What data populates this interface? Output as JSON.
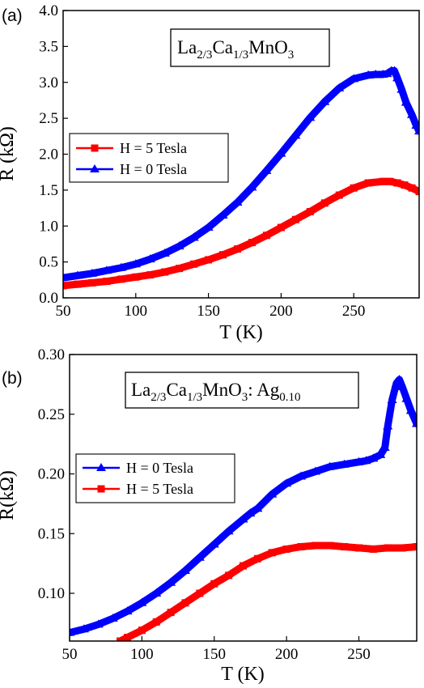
{
  "figure": {
    "panels": [
      "a",
      "b"
    ]
  },
  "chart_data": [
    {
      "id": "a",
      "type": "line",
      "panel_label": "(a)",
      "compound": {
        "main1": "La",
        "sub1": "2/3",
        "main2": "Ca",
        "sub2": "1/3",
        "main3": "MnO",
        "sub3": "3",
        "suffix": "",
        "suffix_sub": ""
      },
      "xlabel": "T (K)",
      "ylabel": "R (kΩ)",
      "xlim": [
        50,
        295
      ],
      "ylim": [
        0,
        4.0
      ],
      "xticks": [
        50,
        100,
        150,
        200,
        250
      ],
      "yticks": [
        0.0,
        0.5,
        1.0,
        1.5,
        2.0,
        2.5,
        3.0,
        3.5,
        4.0
      ],
      "ytick_labels": [
        "0.0",
        "0.5",
        "1.0",
        "1.5",
        "2.0",
        "2.5",
        "3.0",
        "3.5",
        "4.0"
      ],
      "legend": {
        "position": "middle-left",
        "order": [
          "H = 5 Tesla",
          "H = 0 Tesla"
        ]
      },
      "series": [
        {
          "name": "H = 5 Tesla",
          "color": "#ff0000",
          "marker": "square",
          "x": [
            50,
            60,
            70,
            80,
            90,
            100,
            110,
            120,
            130,
            140,
            150,
            160,
            170,
            180,
            190,
            200,
            210,
            220,
            230,
            240,
            250,
            260,
            270,
            275,
            280,
            285,
            290,
            295
          ],
          "y": [
            0.17,
            0.19,
            0.21,
            0.23,
            0.26,
            0.29,
            0.32,
            0.36,
            0.41,
            0.47,
            0.53,
            0.6,
            0.68,
            0.77,
            0.87,
            0.98,
            1.09,
            1.2,
            1.32,
            1.43,
            1.53,
            1.6,
            1.62,
            1.62,
            1.6,
            1.57,
            1.53,
            1.48
          ]
        },
        {
          "name": "H = 0 Tesla",
          "color": "#0000ff",
          "marker": "triangle",
          "x": [
            50,
            60,
            70,
            80,
            90,
            100,
            110,
            120,
            130,
            140,
            150,
            160,
            170,
            180,
            190,
            200,
            210,
            220,
            230,
            240,
            250,
            260,
            265,
            270,
            273,
            276,
            278,
            280,
            283,
            286,
            290,
            293,
            295
          ],
          "y": [
            0.28,
            0.31,
            0.34,
            0.38,
            0.42,
            0.47,
            0.54,
            0.62,
            0.72,
            0.84,
            0.98,
            1.15,
            1.33,
            1.54,
            1.77,
            2.01,
            2.26,
            2.51,
            2.73,
            2.92,
            3.05,
            3.1,
            3.11,
            3.11,
            3.12,
            3.16,
            3.16,
            3.06,
            2.9,
            2.72,
            2.55,
            2.4,
            2.32
          ]
        }
      ]
    },
    {
      "id": "b",
      "type": "line",
      "panel_label": "(b)",
      "compound": {
        "main1": "La",
        "sub1": "2/3",
        "main2": "Ca",
        "sub2": "1/3",
        "main3": "MnO",
        "sub3": "3",
        "suffix": ": Ag",
        "suffix_sub": "0.10"
      },
      "xlabel": "T (K)",
      "ylabel": "R(kΩ)",
      "xlim": [
        50,
        290
      ],
      "ylim": [
        0.06,
        0.3
      ],
      "xticks": [
        50,
        100,
        150,
        200,
        250
      ],
      "yticks": [
        0.1,
        0.15,
        0.2,
        0.25,
        0.3
      ],
      "ytick_labels": [
        "0.10",
        "0.15",
        "0.20",
        "0.25",
        "0.30"
      ],
      "legend": {
        "position": "middle-left",
        "order": [
          "H = 0 Tesla",
          "H = 5 Tesla"
        ]
      },
      "series": [
        {
          "name": "H = 0 Tesla",
          "color": "#0000ff",
          "marker": "triangle",
          "x": [
            50,
            60,
            70,
            80,
            90,
            100,
            110,
            120,
            130,
            140,
            150,
            160,
            170,
            175,
            180,
            190,
            200,
            210,
            220,
            230,
            240,
            250,
            255,
            260,
            265,
            268,
            270,
            273,
            276,
            278,
            280,
            283,
            286,
            290
          ],
          "y": [
            0.067,
            0.07,
            0.074,
            0.079,
            0.085,
            0.092,
            0.1,
            0.109,
            0.119,
            0.13,
            0.141,
            0.152,
            0.162,
            0.167,
            0.171,
            0.183,
            0.192,
            0.198,
            0.202,
            0.206,
            0.208,
            0.21,
            0.211,
            0.213,
            0.216,
            0.222,
            0.24,
            0.262,
            0.276,
            0.279,
            0.273,
            0.263,
            0.253,
            0.242
          ]
        },
        {
          "name": "H = 5 Tesla",
          "color": "#ff0000",
          "marker": "square",
          "x": [
            85,
            90,
            100,
            110,
            120,
            130,
            140,
            150,
            160,
            170,
            180,
            190,
            200,
            210,
            220,
            230,
            240,
            250,
            260,
            270,
            280,
            290
          ],
          "y": [
            0.06,
            0.063,
            0.069,
            0.076,
            0.084,
            0.092,
            0.1,
            0.108,
            0.115,
            0.123,
            0.129,
            0.134,
            0.137,
            0.139,
            0.14,
            0.14,
            0.139,
            0.138,
            0.137,
            0.138,
            0.138,
            0.139
          ]
        }
      ]
    }
  ]
}
